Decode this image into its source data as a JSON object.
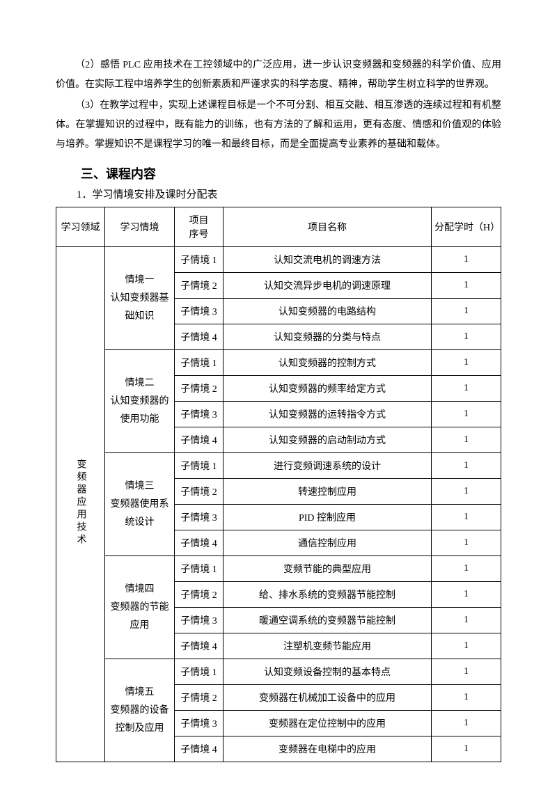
{
  "paragraphs": {
    "p1": "（2）感悟 PLC 应用技术在工控领域中的广泛应用，进一步认识变频器和变频器的科学价值、应用价值。在实际工程中培养学生的创新素质和严谨求实的科学态度、精神，帮助学生树立科学的世界观。",
    "p2": "（3）在教学过程中，实现上述课程目标是一个不可分割、相互交融、相互渗透的连续过程和有机整体。在掌握知识的过程中，既有能力的训练，也有方法的了解和运用，更有态度、情感和价值观的体验与培养。掌握知识不是课程学习的唯一和最终目标，而是全面提高专业素养的基础和载体。"
  },
  "heading": "三、课程内容",
  "subheading": "1．学习情境安排及课时分配表",
  "table": {
    "headers": {
      "domain": "学习领域",
      "context": "学习情境",
      "seq_l1": "项目",
      "seq_l2": "序号",
      "name": "项目名称",
      "hours": "分配学时（H）"
    },
    "domain_label": "变频器应用技术",
    "groups": [
      {
        "context_l1": "情境一",
        "context_l2": "认知变频器基",
        "context_l3": "础知识",
        "rows": [
          {
            "seq": "子情境 1",
            "name": "认知交流电机的调速方法",
            "hours": "1"
          },
          {
            "seq": "子情境 2",
            "name": "认知交流异步电机的调速原理",
            "hours": "1"
          },
          {
            "seq": "子情境 3",
            "name": "认知变频器的电路结构",
            "hours": "1"
          },
          {
            "seq": "子情境 4",
            "name": "认知变频器的分类与特点",
            "hours": "1"
          }
        ]
      },
      {
        "context_l1": "情境二",
        "context_l2": "认知变频器的",
        "context_l3": "使用功能",
        "rows": [
          {
            "seq": "子情境 1",
            "name": "认知变频器的控制方式",
            "hours": "1"
          },
          {
            "seq": "子情境 2",
            "name": "认知变频器的频率给定方式",
            "hours": "1"
          },
          {
            "seq": "子情境 3",
            "name": "认知变频器的运转指令方式",
            "hours": "1"
          },
          {
            "seq": "子情境 4",
            "name": "认知变频器的启动制动方式",
            "hours": "1"
          }
        ]
      },
      {
        "context_l1": "情境三",
        "context_l2": "变频器使用系",
        "context_l3": "统设计",
        "rows": [
          {
            "seq": "子情境 1",
            "name": "进行变频调速系统的设计",
            "hours": "1"
          },
          {
            "seq": "子情境 2",
            "name": "转速控制应用",
            "hours": "1"
          },
          {
            "seq": "子情境 3",
            "name": "PID 控制应用",
            "hours": "1"
          },
          {
            "seq": "子情境 4",
            "name": "通信控制应用",
            "hours": "1"
          }
        ]
      },
      {
        "context_l1": "情境四",
        "context_l2": "变频器的节能",
        "context_l3": "应用",
        "rows": [
          {
            "seq": "子情境 1",
            "name": "变频节能的典型应用",
            "hours": "1"
          },
          {
            "seq": "子情境 2",
            "name": "给、排水系统的变频器节能控制",
            "hours": "1"
          },
          {
            "seq": "子情境 3",
            "name": "暖通空调系统的变频器节能控制",
            "hours": "1"
          },
          {
            "seq": "子情境 4",
            "name": "注塑机变频节能应用",
            "hours": "1"
          }
        ]
      },
      {
        "context_l1": "情境五",
        "context_l2": "变频器的设备",
        "context_l3": "控制及应用",
        "rows": [
          {
            "seq": "子情境 1",
            "name": "认知变频设备控制的基本特点",
            "hours": "1"
          },
          {
            "seq": "子情境 2",
            "name": "变频器在机械加工设备中的应用",
            "hours": "1"
          },
          {
            "seq": "子情境 3",
            "name": "变频器在定位控制中的应用",
            "hours": "1"
          },
          {
            "seq": "子情境 4",
            "name": "变频器在电梯中的应用",
            "hours": "1"
          }
        ]
      }
    ]
  }
}
